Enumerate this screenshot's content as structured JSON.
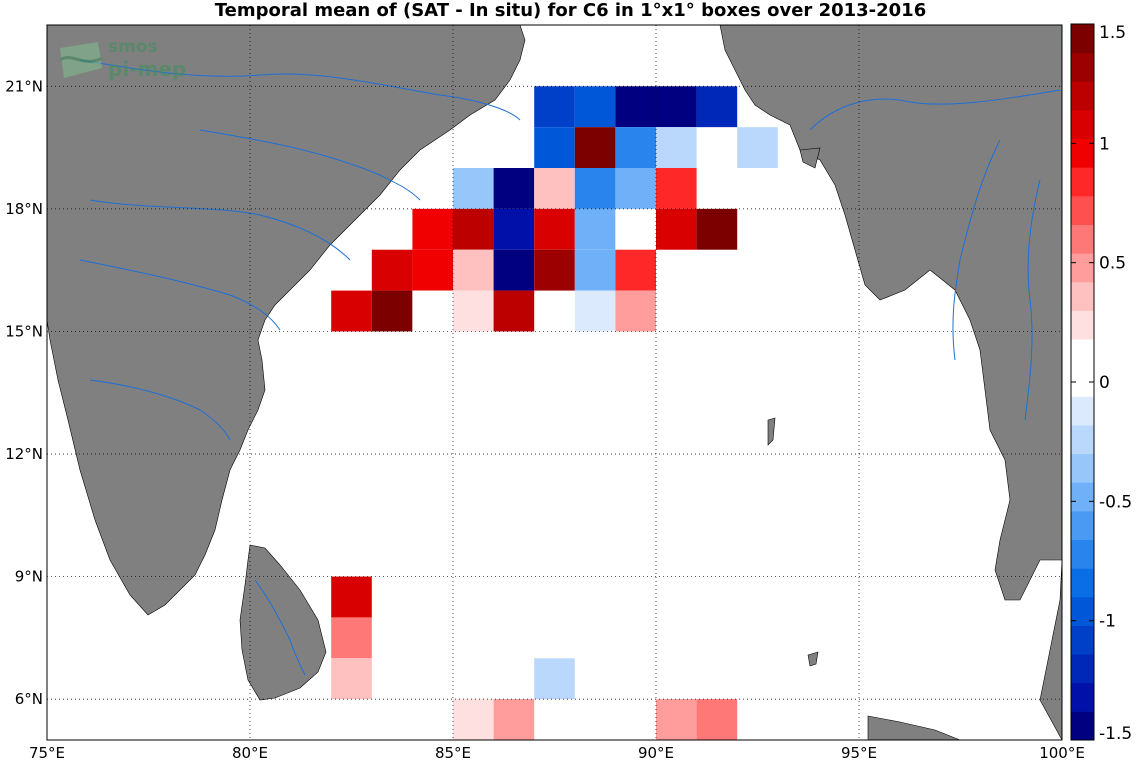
{
  "title": "Temporal mean of (SAT - In situ) for C6 in 1°x1° boxes over 2013-2016",
  "logo": {
    "line1": "smos",
    "line2": "pi-mep"
  },
  "map": {
    "lon_range": [
      75,
      100
    ],
    "lat_range": [
      5,
      22.5
    ],
    "lon_ticks": [
      "75°E",
      "80°E",
      "85°E",
      "90°E",
      "95°E",
      "100°E"
    ],
    "lat_ticks": [
      "6°N",
      "9°N",
      "12°N",
      "15°N",
      "18°N",
      "21°N"
    ],
    "land_color": "#808080",
    "river_color": "#1f6fd6",
    "grid": "dotted"
  },
  "colorbar": {
    "range": [
      -1.5,
      1.5
    ],
    "ticks": [
      "1.5",
      "1",
      "0.5",
      "0",
      "-0.5",
      "-1",
      "-1.5"
    ],
    "colors": [
      "#000080",
      "#0010a8",
      "#0028b8",
      "#0040c8",
      "#0058d8",
      "#0a6ee6",
      "#2a84ee",
      "#4a9af4",
      "#70b0f8",
      "#96c6fa",
      "#bad8fc",
      "#dceafe",
      "#ffffff",
      "#ffffff",
      "#ffe0e0",
      "#ffc0c0",
      "#ff9c9c",
      "#ff7878",
      "#ff5050",
      "#ff2828",
      "#f00000",
      "#d80000",
      "#bc0000",
      "#9c0000",
      "#7c0000"
    ]
  },
  "chart_data": {
    "type": "heatmap",
    "title": "Temporal mean of (SAT - In situ) for C6 in 1°x1° boxes over 2013-2016",
    "cell_size_deg": 1,
    "value_range": [
      -1.5,
      1.5
    ],
    "cells": [
      {
        "lon": 87,
        "lat": 20,
        "value": -1.1
      },
      {
        "lon": 88,
        "lat": 20,
        "value": -0.95
      },
      {
        "lon": 89,
        "lat": 20,
        "value": -1.5
      },
      {
        "lon": 90,
        "lat": 20,
        "value": -1.5
      },
      {
        "lon": 91,
        "lat": 20,
        "value": -1.2
      },
      {
        "lon": 87,
        "lat": 19,
        "value": -1.0
      },
      {
        "lon": 88,
        "lat": 19,
        "value": 1.4
      },
      {
        "lon": 89,
        "lat": 19,
        "value": -0.7
      },
      {
        "lon": 90,
        "lat": 19,
        "value": -0.3
      },
      {
        "lon": 92,
        "lat": 19,
        "value": -0.3
      },
      {
        "lon": 85,
        "lat": 18,
        "value": -0.4
      },
      {
        "lon": 86,
        "lat": 18,
        "value": -1.4
      },
      {
        "lon": 87,
        "lat": 18,
        "value": 0.35
      },
      {
        "lon": 88,
        "lat": 18,
        "value": -0.75
      },
      {
        "lon": 89,
        "lat": 18,
        "value": -0.45
      },
      {
        "lon": 90,
        "lat": 18,
        "value": 0.85
      },
      {
        "lon": 84,
        "lat": 17,
        "value": 0.95
      },
      {
        "lon": 85,
        "lat": 17,
        "value": 1.25
      },
      {
        "lon": 86,
        "lat": 17,
        "value": -1.3
      },
      {
        "lon": 87,
        "lat": 17,
        "value": 1.05
      },
      {
        "lon": 88,
        "lat": 17,
        "value": -0.45
      },
      {
        "lon": 89,
        "lat": 17,
        "value": 0.05
      },
      {
        "lon": 90,
        "lat": 17,
        "value": 1.05
      },
      {
        "lon": 91,
        "lat": 17,
        "value": 1.4
      },
      {
        "lon": 83,
        "lat": 16,
        "value": 1.05
      },
      {
        "lon": 84,
        "lat": 16,
        "value": 0.95
      },
      {
        "lon": 85,
        "lat": 16,
        "value": 0.3
      },
      {
        "lon": 86,
        "lat": 16,
        "value": -1.4
      },
      {
        "lon": 87,
        "lat": 16,
        "value": 1.35
      },
      {
        "lon": 88,
        "lat": 16,
        "value": -0.45
      },
      {
        "lon": 89,
        "lat": 16,
        "value": 0.85
      },
      {
        "lon": 82,
        "lat": 15,
        "value": 1.05
      },
      {
        "lon": 83,
        "lat": 15,
        "value": 1.45
      },
      {
        "lon": 84,
        "lat": 15,
        "value": 0.15
      },
      {
        "lon": 85,
        "lat": 15,
        "value": 0.2
      },
      {
        "lon": 86,
        "lat": 15,
        "value": 1.25
      },
      {
        "lon": 88,
        "lat": 15,
        "value": -0.15
      },
      {
        "lon": 89,
        "lat": 15,
        "value": 0.45
      },
      {
        "lon": 82,
        "lat": 8,
        "value": 1.05
      },
      {
        "lon": 82,
        "lat": 7,
        "value": 0.6
      },
      {
        "lon": 82,
        "lat": 6,
        "value": 0.3
      },
      {
        "lon": 87,
        "lat": 6,
        "value": -0.3
      },
      {
        "lon": 91,
        "lat": 6,
        "value": 0.15
      },
      {
        "lon": 92,
        "lat": 6,
        "value": 0.15
      },
      {
        "lon": 83,
        "lat": 5,
        "value": 0.15
      },
      {
        "lon": 85,
        "lat": 5,
        "value": 0.2
      },
      {
        "lon": 86,
        "lat": 5,
        "value": 0.5
      },
      {
        "lon": 89,
        "lat": 5,
        "value": 0.15
      },
      {
        "lon": 90,
        "lat": 5,
        "value": 0.5
      },
      {
        "lon": 91,
        "lat": 5,
        "value": 0.6
      }
    ]
  }
}
